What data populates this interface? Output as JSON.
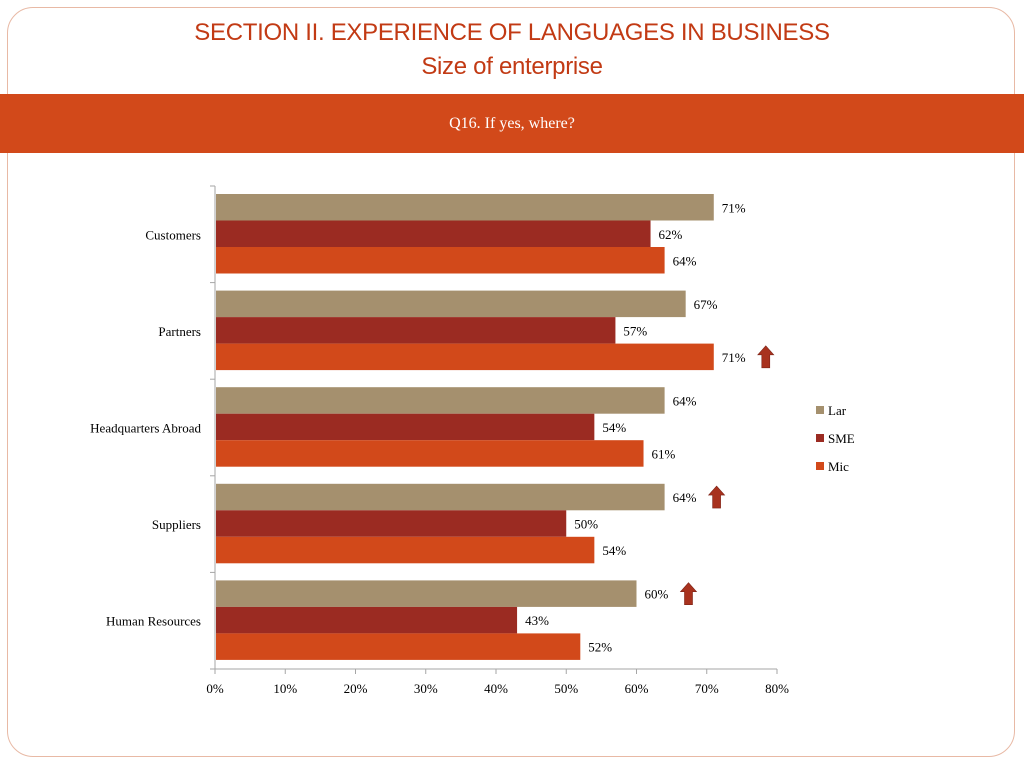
{
  "header": {
    "title": "SECTION II. EXPERIENCE OF LANGUAGES IN BUSINESS",
    "subtitle": "Size of enterprise"
  },
  "question": {
    "label": "Q16. If yes, where?"
  },
  "colors": {
    "accent": "#d2491a",
    "title": "#c23a14",
    "arrow": "#a8321e"
  },
  "chart_data": {
    "type": "bar",
    "orientation": "horizontal",
    "categories": [
      "Customers",
      "Partners",
      "Headquarters Abroad",
      "Suppliers",
      "Human Resources"
    ],
    "series": [
      {
        "name": "Lar",
        "color": "#a5906e",
        "values": [
          71,
          67,
          64,
          64,
          60
        ]
      },
      {
        "name": "SME",
        "color": "#9b2b22",
        "values": [
          62,
          57,
          54,
          50,
          43
        ]
      },
      {
        "name": "Mic",
        "color": "#d2491a",
        "values": [
          64,
          71,
          61,
          54,
          52
        ]
      }
    ],
    "data_labels": [
      [
        "71%",
        "67%",
        "64%",
        "64%",
        "60%"
      ],
      [
        "62%",
        "57%",
        "54%",
        "50%",
        "43%"
      ],
      [
        "64%",
        "71%",
        "61%",
        "54%",
        "52%"
      ]
    ],
    "xlim": [
      0,
      80
    ],
    "xticks": [
      0,
      10,
      20,
      30,
      40,
      50,
      60,
      70,
      80
    ],
    "xtick_labels": [
      "0%",
      "10%",
      "20%",
      "30%",
      "40%",
      "50%",
      "60%",
      "70%",
      "80%"
    ],
    "xlabel": "",
    "ylabel": "",
    "grid": false,
    "legend_position": "right",
    "annotations": [
      {
        "type": "up-arrow",
        "category": "Partners",
        "series": "Mic"
      },
      {
        "type": "up-arrow",
        "category": "Suppliers",
        "series": "Lar"
      },
      {
        "type": "up-arrow",
        "category": "Human Resources",
        "series": "Lar"
      }
    ]
  }
}
